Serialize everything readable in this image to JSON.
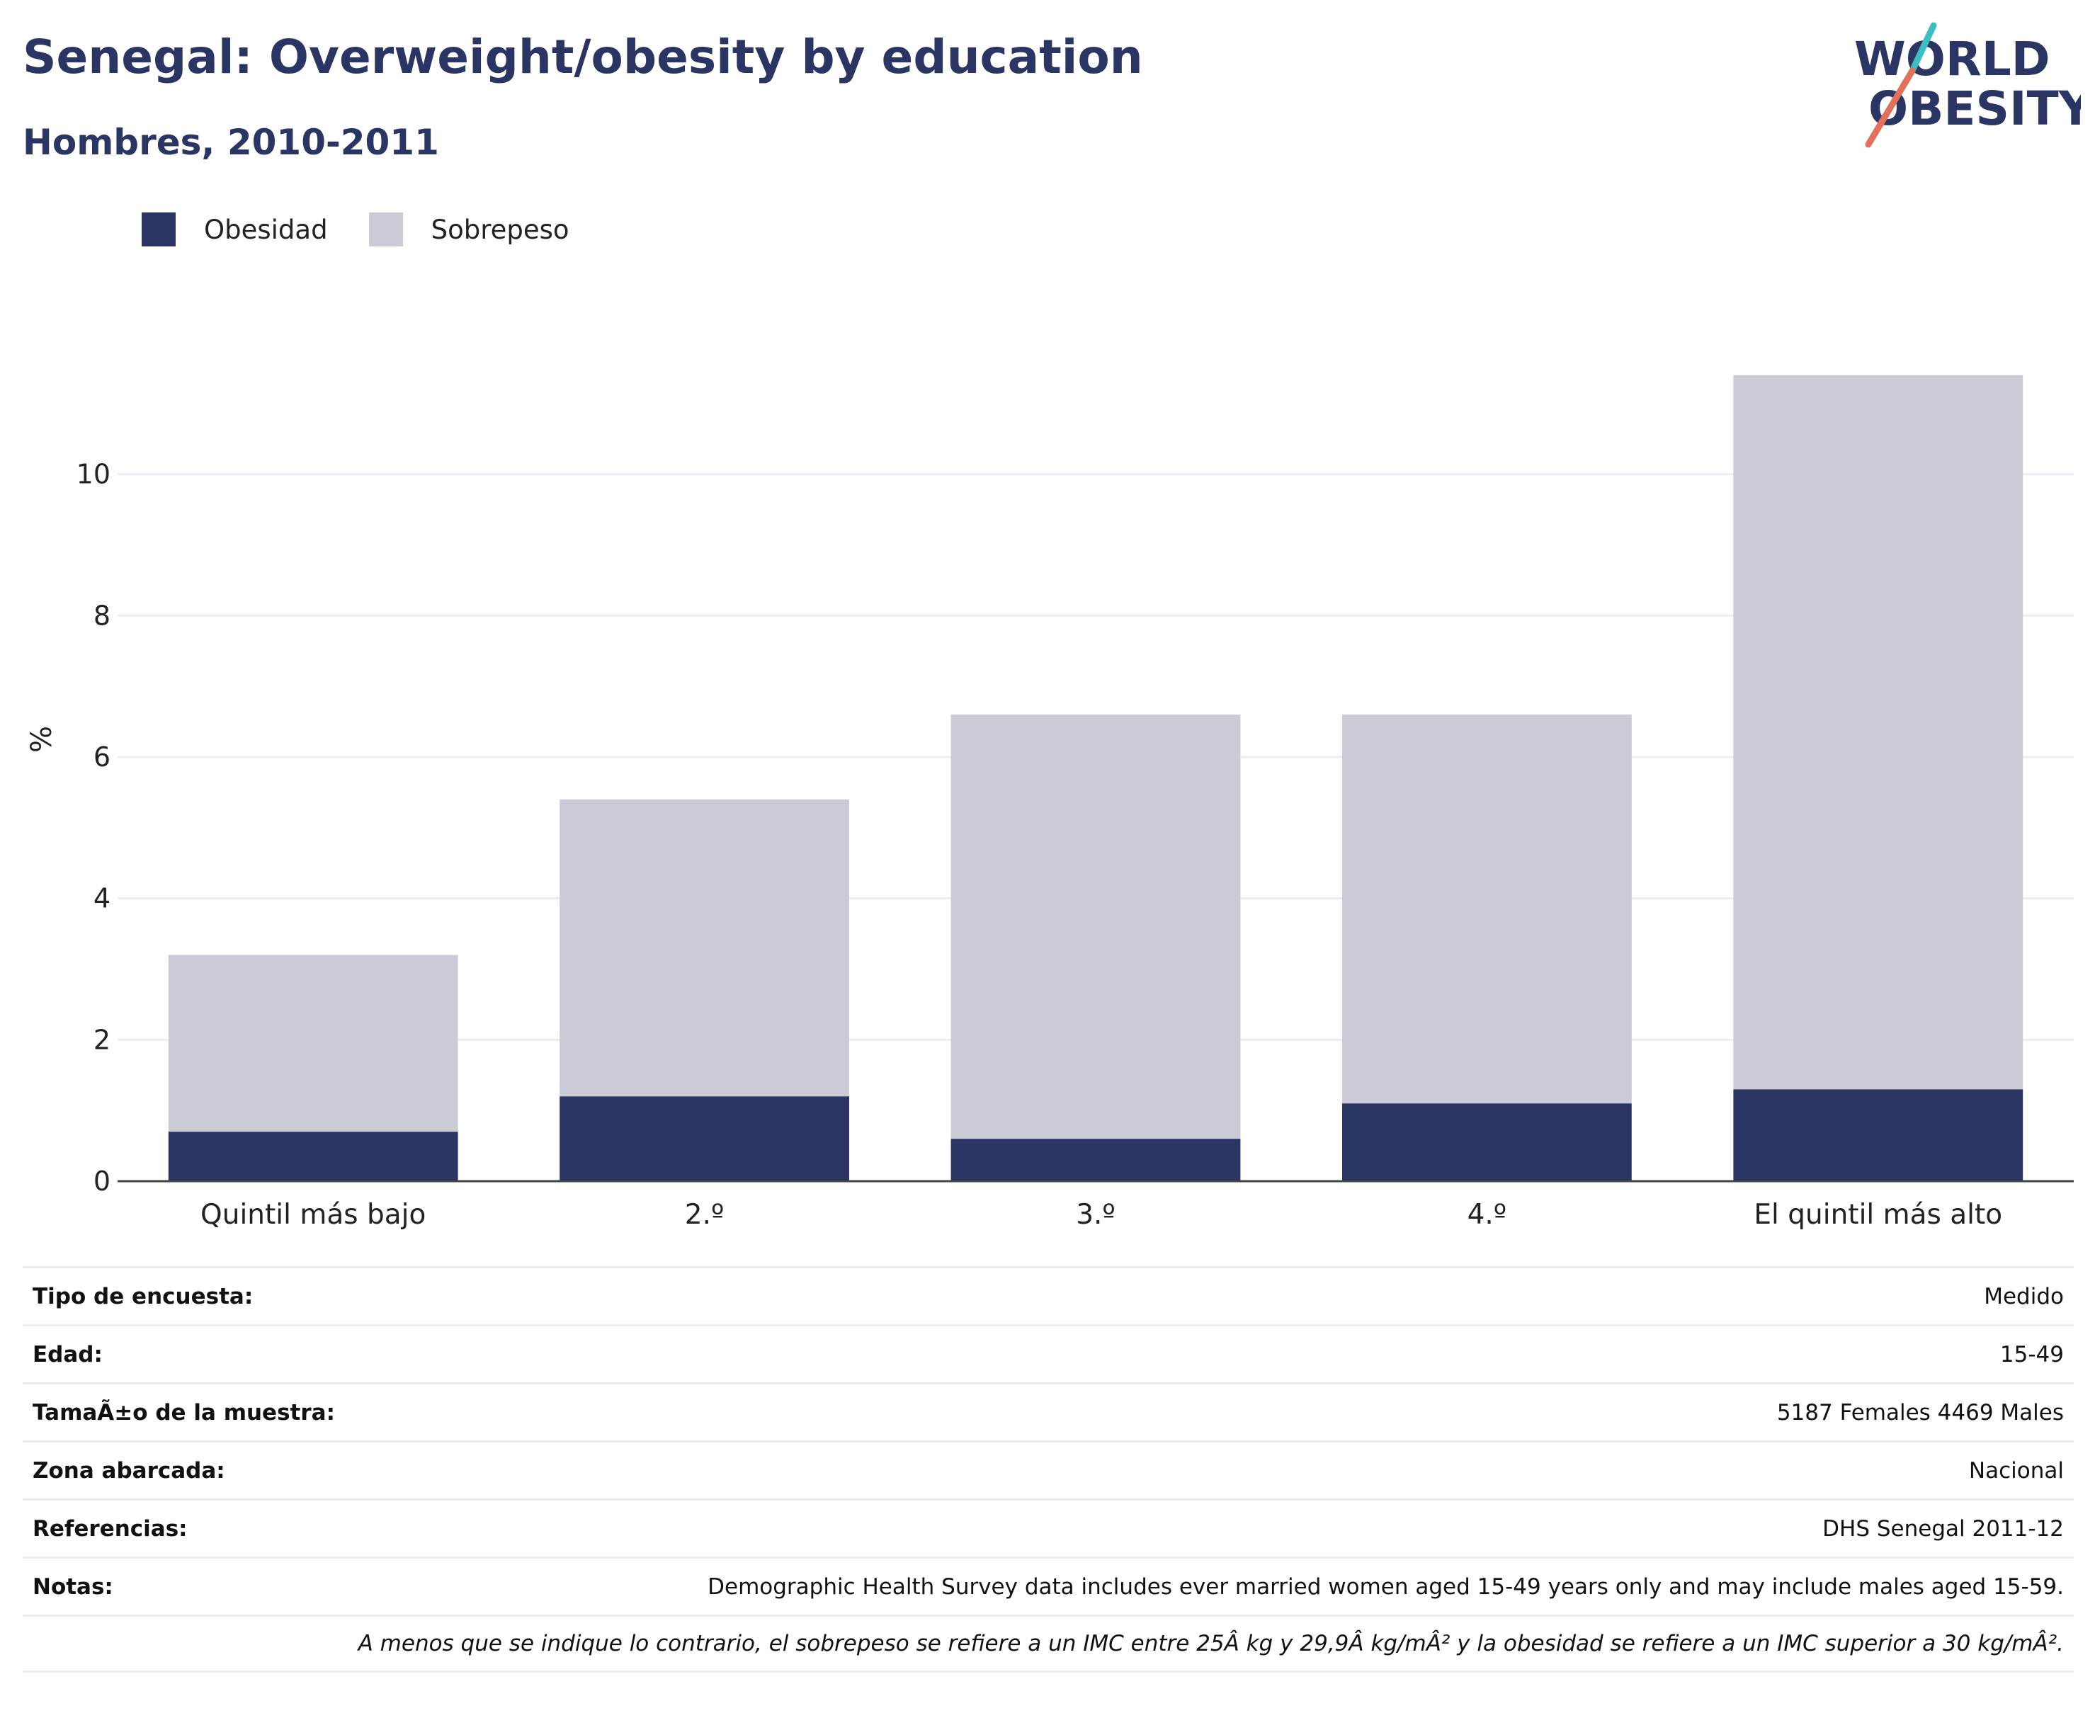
{
  "header": {
    "title": "Senegal: Overweight/obesity by education",
    "subtitle": "Hombres, 2010-2011"
  },
  "logo": {
    "line1": "WORLD",
    "line2": "OBESITY",
    "colors": {
      "text": "#2a3563",
      "teal": "#3bbfc0",
      "coral": "#e2705a"
    }
  },
  "colors": {
    "obesidad": "#2a3563",
    "sobrepeso": "#cacbd7",
    "grid": "#ebedf2",
    "axis": "#444444"
  },
  "chart_data": {
    "type": "bar",
    "stacked": true,
    "categories": [
      "Quintil más bajo",
      "2.º",
      "3.º",
      "4.º",
      "El quintil más alto"
    ],
    "series": [
      {
        "name": "Obesidad",
        "values": [
          0.7,
          1.2,
          0.6,
          1.1,
          1.3
        ]
      },
      {
        "name": "Sobrepeso",
        "values": [
          2.5,
          4.2,
          6.0,
          5.5,
          10.1
        ]
      }
    ],
    "ylabel": "%",
    "ylim": [
      0,
      12.5
    ],
    "yticks": [
      0,
      2,
      4,
      6,
      8,
      10
    ],
    "grid": true,
    "legend_position": "top-left"
  },
  "info": {
    "rows": [
      {
        "label": "Tipo de encuesta:",
        "value": "Medido"
      },
      {
        "label": "Edad:",
        "value": "15-49"
      },
      {
        "label": "TamaÃ±o de la muestra:",
        "value": "5187 Females 4469 Males"
      },
      {
        "label": "Zona abarcada:",
        "value": "Nacional"
      },
      {
        "label": "Referencias:",
        "value": "DHS Senegal 2011-12"
      },
      {
        "label": "Notas:",
        "value": "Demographic Health Survey data includes ever married women aged 15-49 years only and may include males aged 15-59."
      }
    ],
    "note": "A menos que se indique lo contrario, el sobrepeso se refiere a un IMC entre 25Â kg y 29,9Â kg/mÂ² y la obesidad se refiere a un IMC superior a 30 kg/mÂ²."
  }
}
